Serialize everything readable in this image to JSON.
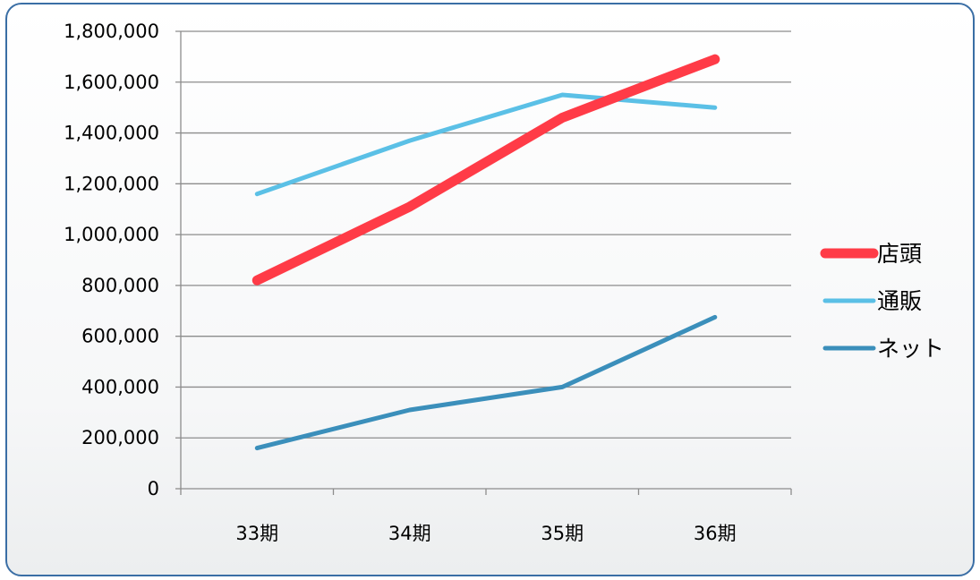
{
  "chart_data": {
    "type": "line",
    "categories": [
      "33期",
      "34期",
      "35期",
      "36期"
    ],
    "series": [
      {
        "name": "店頭",
        "values": [
          820000,
          1110000,
          1460000,
          1690000
        ],
        "color": "#ff3b47"
      },
      {
        "name": "通販",
        "values": [
          1160000,
          1370000,
          1550000,
          1500000
        ],
        "color": "#5bc0e6"
      },
      {
        "name": "ネット",
        "values": [
          160000,
          310000,
          400000,
          675000
        ],
        "color": "#3b8fbb"
      }
    ],
    "y_ticks": [
      "0",
      "200,000",
      "400,000",
      "600,000",
      "800,000",
      "1,000,000",
      "1,200,000",
      "1,400,000",
      "1,600,000",
      "1,800,000"
    ],
    "ylim": [
      0,
      1800000
    ],
    "grid": true,
    "legend_position": "right"
  }
}
